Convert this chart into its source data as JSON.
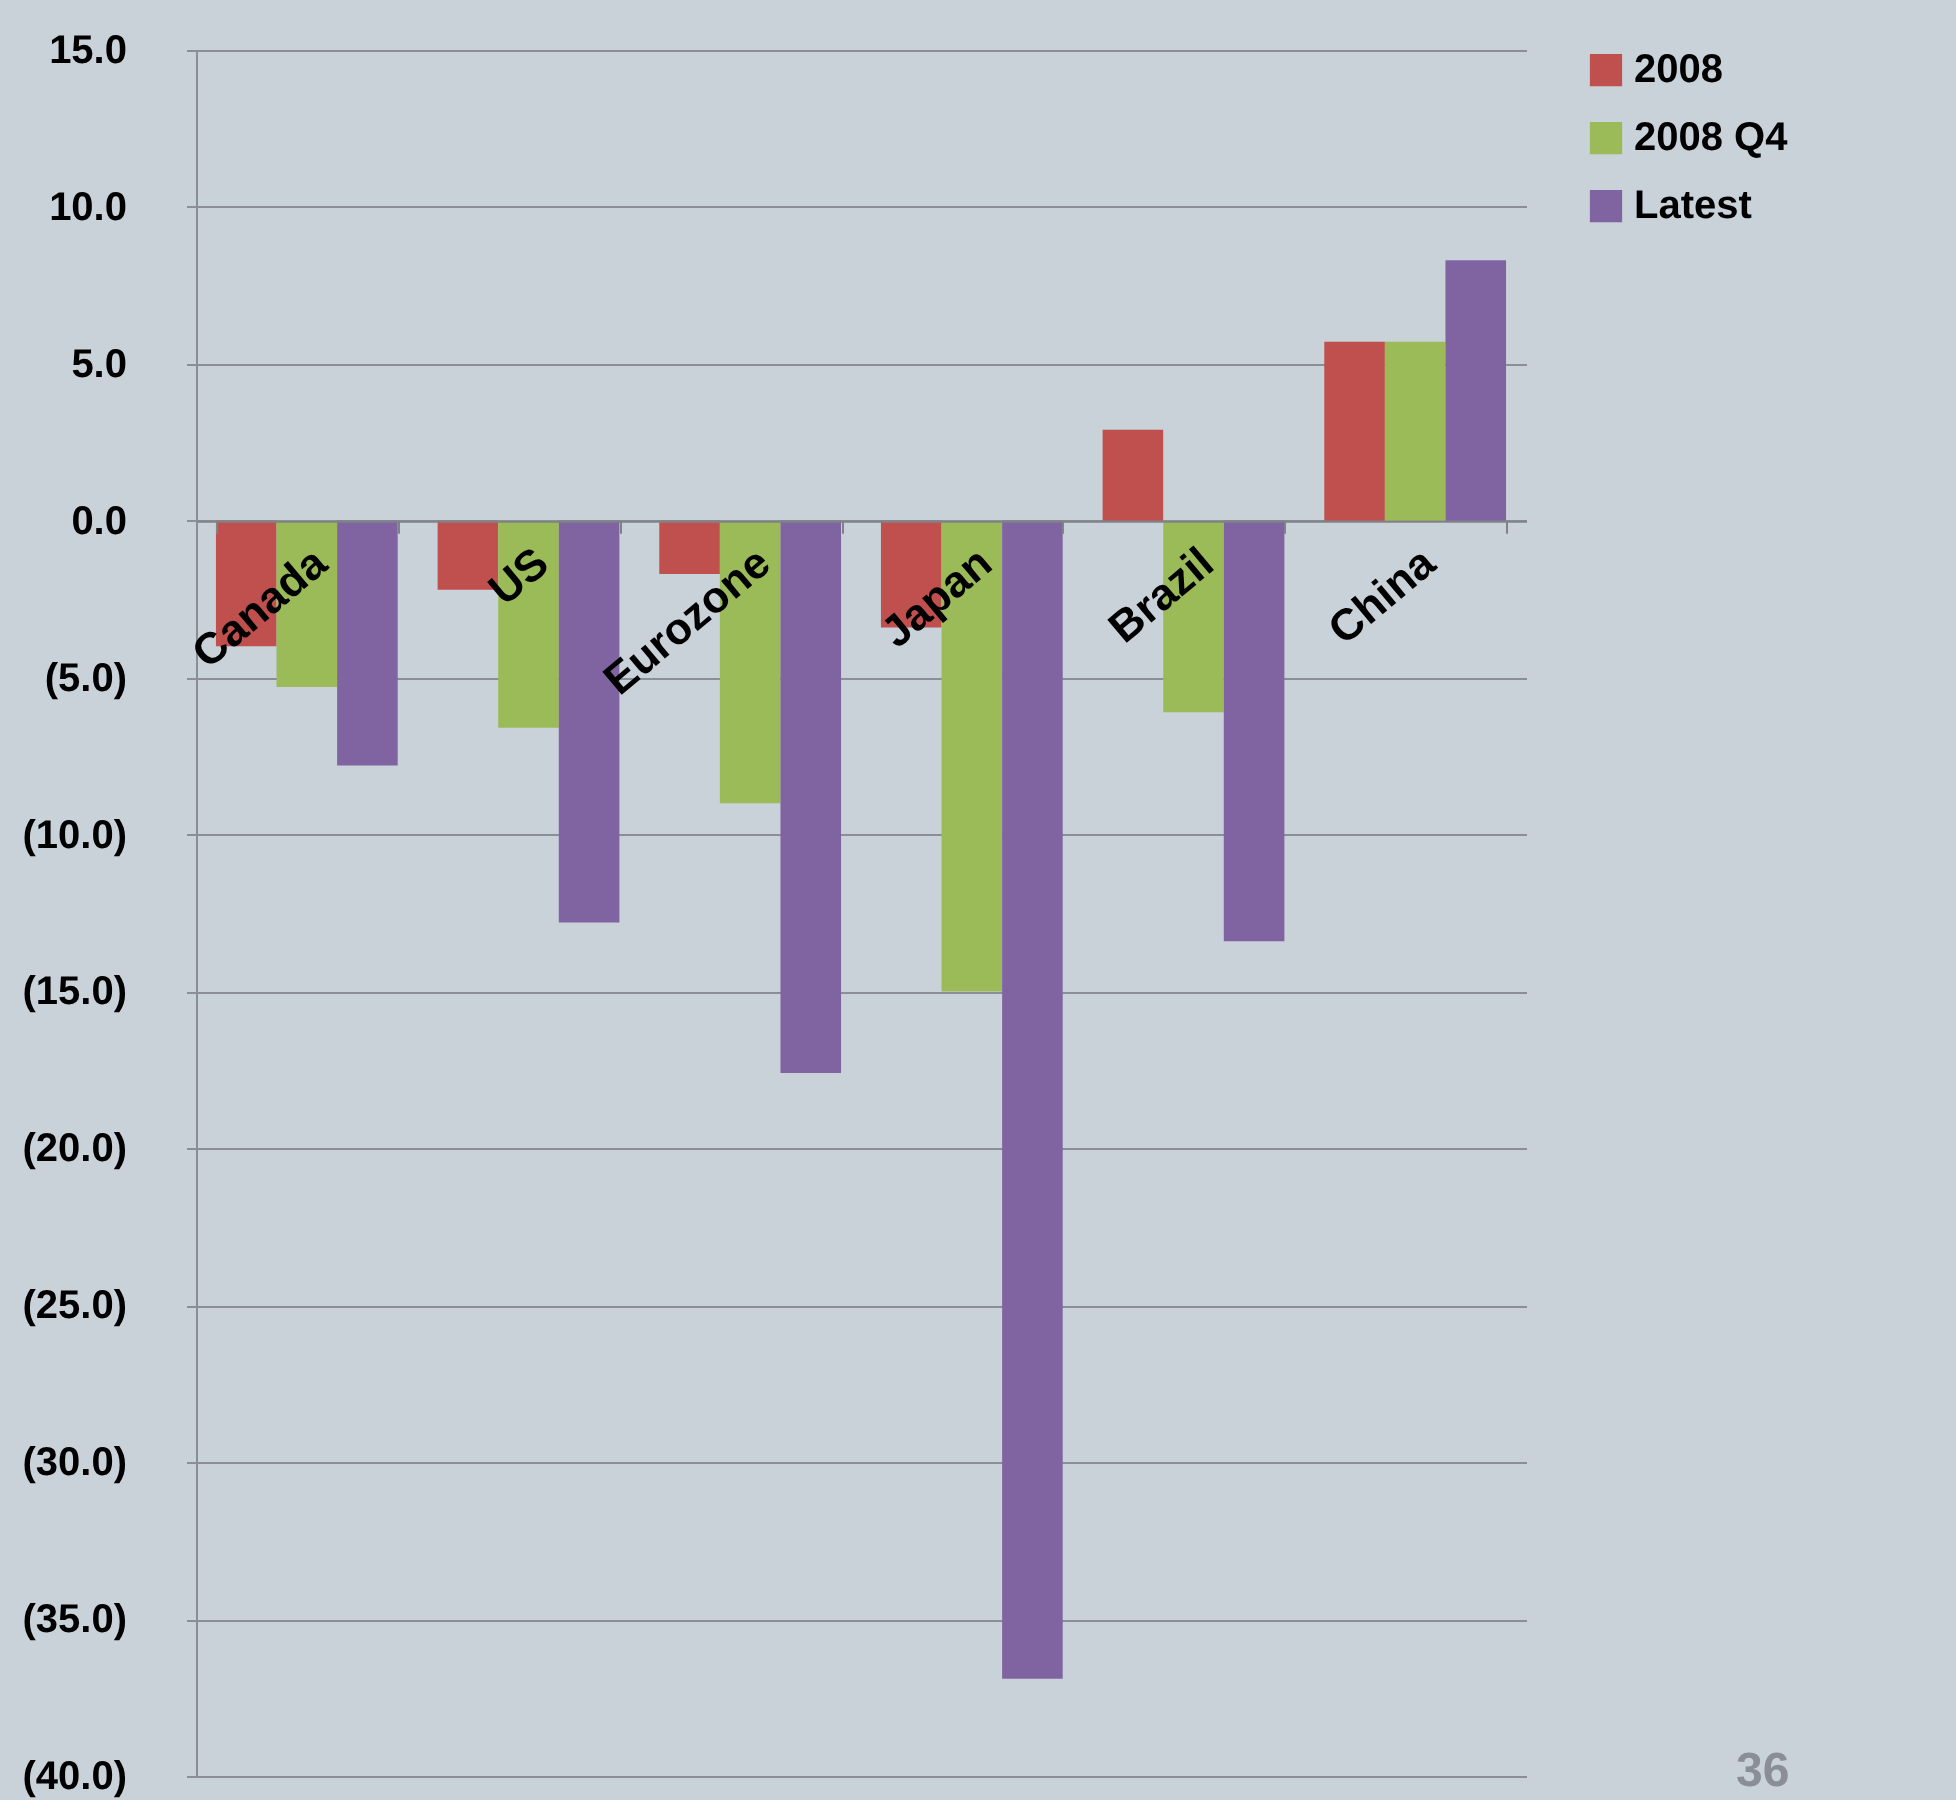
{
  "chart_data": {
    "type": "bar",
    "categories": [
      "Canada",
      "US",
      "Eurozone",
      "Japan",
      "Brazil",
      "China"
    ],
    "series": [
      {
        "name": "2008",
        "color": "#c0504d",
        "values": [
          -4.0,
          -2.2,
          -1.7,
          -3.4,
          2.9,
          5.7
        ]
      },
      {
        "name": "2008 Q4",
        "color": "#9bbb59",
        "values": [
          -5.3,
          -6.6,
          -9.0,
          -15.0,
          -6.1,
          5.7
        ]
      },
      {
        "name": "Latest",
        "color": "#8064a2",
        "values": [
          -7.8,
          -12.8,
          -17.6,
          -36.9,
          -13.4,
          8.3
        ]
      }
    ],
    "ylim": [
      -40,
      15
    ],
    "yticks": [
      {
        "value": -40,
        "label": "(40.0)"
      },
      {
        "value": -35,
        "label": "(35.0)"
      },
      {
        "value": -30,
        "label": "(30.0)"
      },
      {
        "value": -25,
        "label": "(25.0)"
      },
      {
        "value": -20,
        "label": "(20.0)"
      },
      {
        "value": -15,
        "label": "(15.0)"
      },
      {
        "value": -10,
        "label": "(10.0)"
      },
      {
        "value": -5,
        "label": "(5.0)"
      },
      {
        "value": 0,
        "label": "0.0"
      },
      {
        "value": 5,
        "label": "5.0"
      },
      {
        "value": 10,
        "label": "10.0"
      },
      {
        "value": 15,
        "label": "15.0"
      }
    ],
    "grid": "y",
    "legend": "right",
    "annotations": [
      "36"
    ]
  }
}
